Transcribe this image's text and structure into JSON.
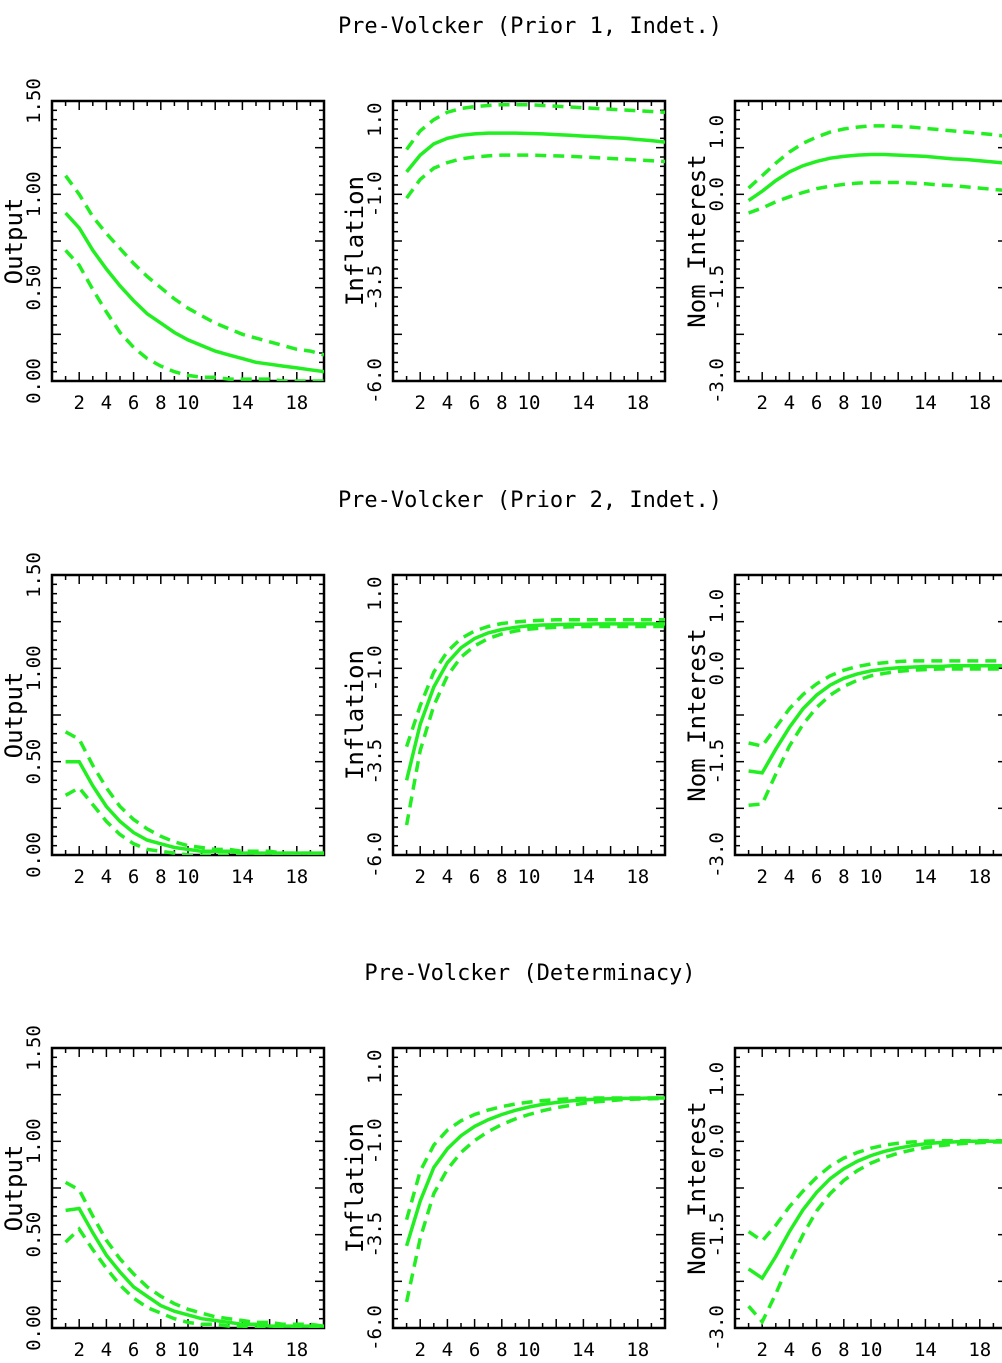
{
  "chart_data": [
    {
      "type": "line",
      "title": "Pre-Volcker (Prior 1, Indet.)",
      "x": [
        1,
        2,
        3,
        4,
        5,
        6,
        7,
        8,
        9,
        10,
        11,
        12,
        13,
        14,
        15,
        16,
        17,
        18,
        19,
        20
      ],
      "panels": [
        {
          "ylabel": "Output",
          "ylim": [
            0.0,
            1.5
          ],
          "yticks": [
            "0.00",
            "0.50",
            "1.00",
            "1.50"
          ],
          "xticks": [
            "2",
            "4",
            "6",
            "8",
            "10",
            "14",
            "18"
          ],
          "series": [
            {
              "style": "dashed",
              "values": [
                1.1,
                1.0,
                0.88,
                0.79,
                0.71,
                0.63,
                0.56,
                0.5,
                0.44,
                0.39,
                0.35,
                0.31,
                0.28,
                0.25,
                0.23,
                0.21,
                0.19,
                0.17,
                0.16,
                0.14
              ]
            },
            {
              "style": "solid",
              "values": [
                0.9,
                0.82,
                0.7,
                0.6,
                0.51,
                0.43,
                0.36,
                0.31,
                0.26,
                0.22,
                0.19,
                0.16,
                0.14,
                0.12,
                0.1,
                0.09,
                0.08,
                0.07,
                0.06,
                0.05
              ]
            },
            {
              "style": "dashed",
              "values": [
                0.7,
                0.62,
                0.49,
                0.37,
                0.26,
                0.18,
                0.12,
                0.08,
                0.05,
                0.03,
                0.02,
                0.02,
                0.01,
                0.01,
                0.01,
                0.01,
                0.0,
                0.0,
                0.0,
                0.0
              ]
            }
          ]
        },
        {
          "ylabel": "Inflation",
          "ylim": [
            -6.0,
            1.5
          ],
          "yticks": [
            "-6.0",
            "-3.5",
            "-1.0",
            "1.0"
          ],
          "xticks": [
            "2",
            "4",
            "6",
            "8",
            "10",
            "14",
            "18"
          ],
          "series": [
            {
              "style": "dashed",
              "values": [
                0.2,
                0.7,
                1.0,
                1.2,
                1.3,
                1.35,
                1.38,
                1.4,
                1.4,
                1.4,
                1.38,
                1.36,
                1.34,
                1.32,
                1.3,
                1.28,
                1.26,
                1.24,
                1.22,
                1.2
              ]
            },
            {
              "style": "solid",
              "values": [
                -0.4,
                0.05,
                0.35,
                0.5,
                0.58,
                0.62,
                0.64,
                0.64,
                0.64,
                0.63,
                0.62,
                0.6,
                0.58,
                0.56,
                0.54,
                0.52,
                0.5,
                0.47,
                0.44,
                0.4
              ]
            },
            {
              "style": "dashed",
              "values": [
                -1.1,
                -0.6,
                -0.3,
                -0.15,
                -0.05,
                0.0,
                0.03,
                0.05,
                0.05,
                0.05,
                0.04,
                0.03,
                0.02,
                0.0,
                -0.02,
                -0.04,
                -0.06,
                -0.08,
                -0.1,
                -0.12
              ]
            }
          ]
        },
        {
          "ylabel": "Nom Interest",
          "ylim": [
            -3.0,
            1.5
          ],
          "yticks": [
            "-3.0",
            "-1.5",
            "0.0",
            "1.0"
          ],
          "xticks": [
            "2",
            "4",
            "6",
            "8",
            "10",
            "14",
            "18"
          ],
          "series": [
            {
              "style": "dashed",
              "values": [
                0.1,
                0.3,
                0.5,
                0.68,
                0.82,
                0.92,
                1.0,
                1.05,
                1.08,
                1.1,
                1.1,
                1.09,
                1.08,
                1.06,
                1.04,
                1.02,
                1.0,
                0.98,
                0.96,
                0.93
              ]
            },
            {
              "style": "solid",
              "values": [
                -0.1,
                0.05,
                0.22,
                0.36,
                0.46,
                0.53,
                0.58,
                0.61,
                0.63,
                0.64,
                0.64,
                0.63,
                0.62,
                0.61,
                0.59,
                0.57,
                0.56,
                0.54,
                0.52,
                0.5
              ]
            },
            {
              "style": "dashed",
              "values": [
                -0.3,
                -0.22,
                -0.12,
                -0.04,
                0.03,
                0.09,
                0.13,
                0.16,
                0.18,
                0.19,
                0.19,
                0.19,
                0.18,
                0.17,
                0.15,
                0.14,
                0.12,
                0.1,
                0.08,
                0.06
              ]
            }
          ]
        }
      ]
    },
    {
      "type": "line",
      "title": "Pre-Volcker (Prior 2, Indet.)",
      "x": [
        1,
        2,
        3,
        4,
        5,
        6,
        7,
        8,
        9,
        10,
        11,
        12,
        13,
        14,
        15,
        16,
        17,
        18,
        19,
        20
      ],
      "panels": [
        {
          "ylabel": "Output",
          "ylim": [
            0.0,
            1.5
          ],
          "yticks": [
            "0.00",
            "0.50",
            "1.00",
            "1.50"
          ],
          "xticks": [
            "2",
            "4",
            "6",
            "8",
            "10",
            "14",
            "18"
          ],
          "series": [
            {
              "style": "dashed",
              "values": [
                0.66,
                0.62,
                0.48,
                0.36,
                0.26,
                0.19,
                0.14,
                0.1,
                0.07,
                0.05,
                0.04,
                0.03,
                0.03,
                0.02,
                0.02,
                0.02,
                0.01,
                0.01,
                0.01,
                0.01
              ]
            },
            {
              "style": "solid",
              "values": [
                0.5,
                0.5,
                0.37,
                0.26,
                0.18,
                0.12,
                0.08,
                0.06,
                0.04,
                0.03,
                0.02,
                0.02,
                0.02,
                0.01,
                0.01,
                0.01,
                0.01,
                0.01,
                0.01,
                0.01
              ]
            },
            {
              "style": "dashed",
              "values": [
                0.32,
                0.36,
                0.27,
                0.18,
                0.11,
                0.06,
                0.03,
                0.02,
                0.01,
                0.0,
                0.0,
                0.0,
                0.0,
                0.0,
                0.0,
                0.0,
                0.0,
                0.0,
                0.0,
                0.0
              ]
            }
          ]
        },
        {
          "ylabel": "Inflation",
          "ylim": [
            -6.0,
            1.5
          ],
          "yticks": [
            "-6.0",
            "-3.5",
            "-1.0",
            "1.0"
          ],
          "xticks": [
            "2",
            "4",
            "6",
            "8",
            "10",
            "14",
            "18"
          ],
          "series": [
            {
              "style": "dashed",
              "values": [
                -3.1,
                -2.0,
                -1.1,
                -0.55,
                -0.2,
                0.0,
                0.12,
                0.2,
                0.24,
                0.27,
                0.29,
                0.3,
                0.3,
                0.3,
                0.3,
                0.3,
                0.3,
                0.3,
                0.3,
                0.3
              ]
            },
            {
              "style": "solid",
              "values": [
                -4.0,
                -2.5,
                -1.5,
                -0.85,
                -0.45,
                -0.2,
                -0.05,
                0.04,
                0.1,
                0.14,
                0.16,
                0.17,
                0.18,
                0.18,
                0.19,
                0.19,
                0.19,
                0.19,
                0.19,
                0.19
              ]
            },
            {
              "style": "dashed",
              "values": [
                -5.2,
                -3.2,
                -2.0,
                -1.2,
                -0.7,
                -0.4,
                -0.2,
                -0.08,
                0.0,
                0.05,
                0.08,
                0.1,
                0.11,
                0.12,
                0.12,
                0.12,
                0.12,
                0.12,
                0.12,
                0.12
              ]
            }
          ]
        },
        {
          "ylabel": "Nom Interest",
          "ylim": [
            -3.0,
            1.5
          ],
          "yticks": [
            "-3.0",
            "-1.5",
            "0.0",
            "1.0"
          ],
          "xticks": [
            "2",
            "4",
            "6",
            "8",
            "10",
            "14",
            "18"
          ],
          "series": [
            {
              "style": "dashed",
              "values": [
                -1.2,
                -1.25,
                -0.95,
                -0.65,
                -0.42,
                -0.25,
                -0.12,
                -0.03,
                0.03,
                0.07,
                0.09,
                0.11,
                0.12,
                0.12,
                0.12,
                0.12,
                0.12,
                0.12,
                0.12,
                0.12
              ]
            },
            {
              "style": "solid",
              "values": [
                -1.65,
                -1.68,
                -1.3,
                -0.95,
                -0.65,
                -0.43,
                -0.27,
                -0.16,
                -0.09,
                -0.04,
                -0.01,
                0.01,
                0.02,
                0.03,
                0.03,
                0.04,
                0.04,
                0.04,
                0.04,
                0.04
              ]
            },
            {
              "style": "dashed",
              "values": [
                -2.2,
                -2.18,
                -1.7,
                -1.25,
                -0.9,
                -0.63,
                -0.43,
                -0.29,
                -0.19,
                -0.12,
                -0.08,
                -0.05,
                -0.03,
                -0.02,
                -0.01,
                -0.01,
                -0.01,
                -0.01,
                -0.01,
                -0.01
              ]
            }
          ]
        }
      ]
    },
    {
      "type": "line",
      "title": "Pre-Volcker (Determinacy)",
      "x": [
        1,
        2,
        3,
        4,
        5,
        6,
        7,
        8,
        9,
        10,
        11,
        12,
        13,
        14,
        15,
        16,
        17,
        18,
        19,
        20
      ],
      "panels": [
        {
          "ylabel": "Output",
          "ylim": [
            0.0,
            1.5
          ],
          "yticks": [
            "0.00",
            "0.50",
            "1.00",
            "1.50"
          ],
          "xticks": [
            "2",
            "4",
            "6",
            "8",
            "10",
            "14",
            "18"
          ],
          "series": [
            {
              "style": "dashed",
              "values": [
                0.78,
                0.74,
                0.6,
                0.47,
                0.37,
                0.29,
                0.22,
                0.17,
                0.13,
                0.1,
                0.08,
                0.06,
                0.05,
                0.04,
                0.03,
                0.03,
                0.02,
                0.02,
                0.02,
                0.01
              ]
            },
            {
              "style": "solid",
              "values": [
                0.63,
                0.64,
                0.51,
                0.39,
                0.3,
                0.22,
                0.17,
                0.12,
                0.09,
                0.07,
                0.05,
                0.04,
                0.03,
                0.02,
                0.02,
                0.01,
                0.01,
                0.01,
                0.01,
                0.01
              ]
            },
            {
              "style": "dashed",
              "values": [
                0.46,
                0.53,
                0.42,
                0.32,
                0.23,
                0.16,
                0.11,
                0.08,
                0.05,
                0.03,
                0.02,
                0.02,
                0.01,
                0.01,
                0.0,
                0.0,
                0.0,
                0.0,
                0.0,
                0.0
              ]
            }
          ]
        },
        {
          "ylabel": "Inflation",
          "ylim": [
            -6.0,
            1.5
          ],
          "yticks": [
            "-6.0",
            "-3.5",
            "-1.0",
            "1.0"
          ],
          "xticks": [
            "2",
            "4",
            "6",
            "8",
            "10",
            "14",
            "18"
          ],
          "series": [
            {
              "style": "dashed",
              "values": [
                -3.1,
                -1.8,
                -1.1,
                -0.7,
                -0.45,
                -0.28,
                -0.16,
                -0.07,
                0.0,
                0.05,
                0.09,
                0.12,
                0.14,
                0.15,
                0.16,
                0.16,
                0.16,
                0.16,
                0.16,
                0.16
              ]
            },
            {
              "style": "solid",
              "values": [
                -3.8,
                -2.6,
                -1.7,
                -1.2,
                -0.85,
                -0.6,
                -0.42,
                -0.28,
                -0.17,
                -0.08,
                -0.01,
                0.04,
                0.08,
                0.11,
                0.13,
                0.14,
                0.15,
                0.15,
                0.16,
                0.16
              ]
            },
            {
              "style": "dashed",
              "values": [
                -5.3,
                -3.6,
                -2.4,
                -1.75,
                -1.3,
                -0.98,
                -0.74,
                -0.55,
                -0.4,
                -0.28,
                -0.18,
                -0.1,
                -0.04,
                0.02,
                0.06,
                0.09,
                0.12,
                0.13,
                0.14,
                0.15
              ]
            }
          ]
        },
        {
          "ylabel": "Nom Interest",
          "ylim": [
            -3.0,
            1.5
          ],
          "yticks": [
            "-3.0",
            "-1.5",
            "0.0",
            "1.0"
          ],
          "xticks": [
            "2",
            "4",
            "6",
            "8",
            "10",
            "14",
            "18"
          ],
          "series": [
            {
              "style": "dashed",
              "values": [
                -1.45,
                -1.6,
                -1.35,
                -1.05,
                -0.8,
                -0.58,
                -0.4,
                -0.27,
                -0.18,
                -0.11,
                -0.06,
                -0.03,
                -0.01,
                0.0,
                0.01,
                0.01,
                0.01,
                0.01,
                0.01,
                0.01
              ]
            },
            {
              "style": "solid",
              "values": [
                -2.05,
                -2.2,
                -1.85,
                -1.45,
                -1.1,
                -0.82,
                -0.6,
                -0.44,
                -0.32,
                -0.23,
                -0.16,
                -0.11,
                -0.07,
                -0.04,
                -0.02,
                -0.01,
                0.0,
                0.0,
                0.0,
                0.0
              ]
            },
            {
              "style": "dashed",
              "values": [
                -2.65,
                -2.9,
                -2.45,
                -1.95,
                -1.5,
                -1.12,
                -0.84,
                -0.63,
                -0.47,
                -0.35,
                -0.26,
                -0.19,
                -0.14,
                -0.1,
                -0.07,
                -0.05,
                -0.03,
                -0.02,
                -0.01,
                -0.01
              ]
            }
          ]
        }
      ]
    }
  ]
}
